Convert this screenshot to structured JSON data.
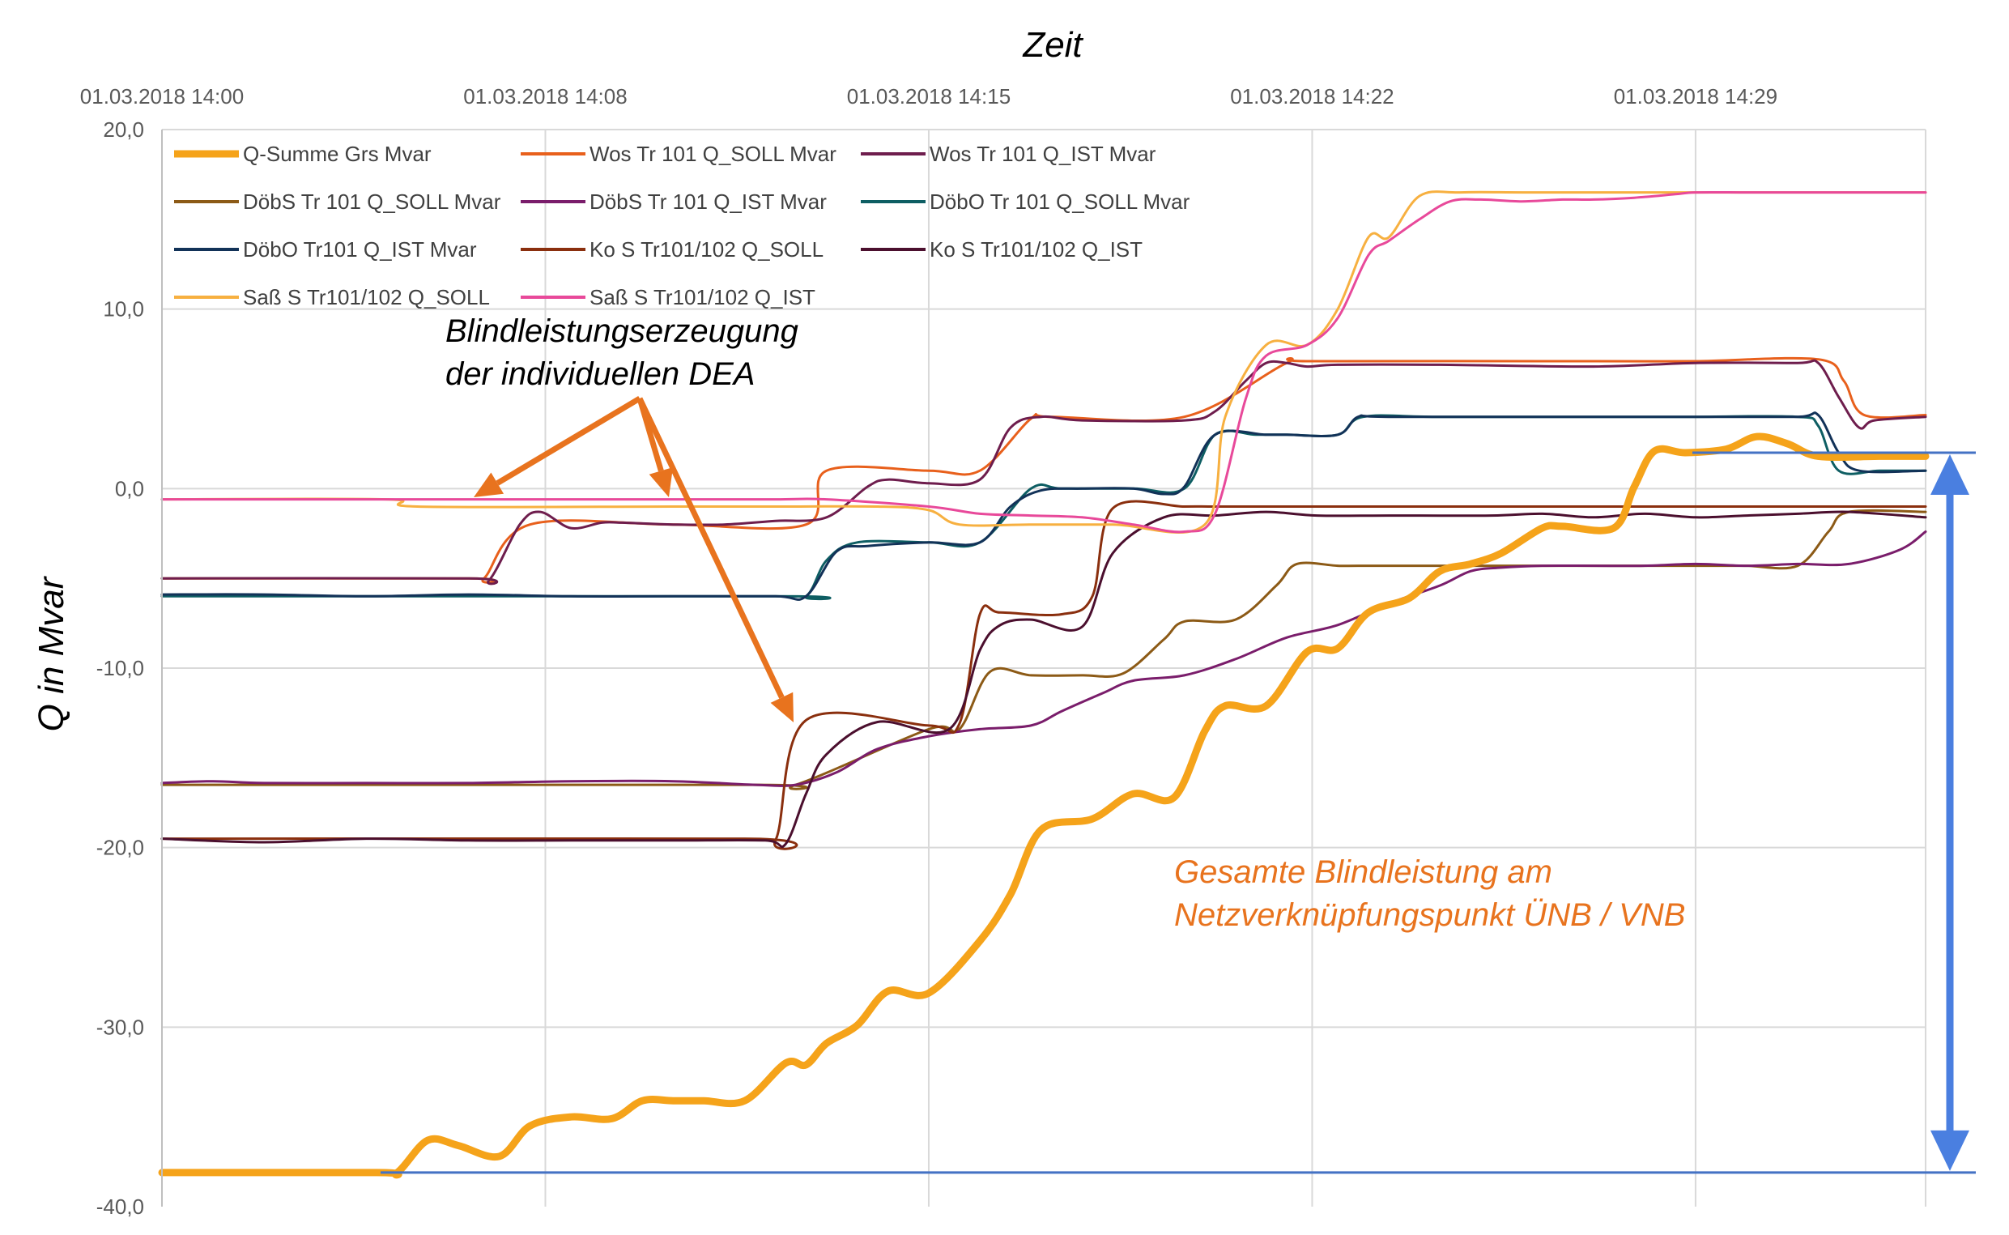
{
  "chart_data": {
    "type": "line",
    "xlabel": "Zeit",
    "ylabel": "Q in Mvar",
    "ylim": [
      -40,
      20
    ],
    "xlim": [
      0,
      34.5
    ],
    "grid": true,
    "legend_position": "top-left",
    "x_ticks": [
      {
        "value": 0,
        "label": "01.03.2018 14:00"
      },
      {
        "value": 7.5,
        "label": "01.03.2018 14:08"
      },
      {
        "value": 15,
        "label": "01.03.2018 14:15"
      },
      {
        "value": 22.5,
        "label": "01.03.2018 14:22"
      },
      {
        "value": 30,
        "label": "01.03.2018 14:29"
      }
    ],
    "y_ticks": [
      {
        "value": 20,
        "label": "20,0"
      },
      {
        "value": 10,
        "label": "10,0"
      },
      {
        "value": 0,
        "label": "0,0"
      },
      {
        "value": -10,
        "label": "-10,0"
      },
      {
        "value": -20,
        "label": "-20,0"
      },
      {
        "value": -30,
        "label": "-30,0"
      },
      {
        "value": -40,
        "label": "-40,0"
      }
    ],
    "series": [
      {
        "name": "Q-Summe Grs Mvar",
        "color": "#F5A31A",
        "width": 9,
        "x": [
          0,
          4.2,
          4.6,
          5.2,
          5.8,
          6.6,
          7.2,
          8,
          8.8,
          9.4,
          10,
          10.6,
          11.4,
          12.2,
          12.6,
          13,
          13.6,
          14.2,
          15,
          16,
          16.6,
          17.2,
          18.2,
          19,
          19.8,
          20.4,
          20.8,
          21.6,
          22.4,
          23,
          23.6,
          24.4,
          25,
          25.6,
          26.2,
          27,
          27.4,
          28.4,
          28.8,
          29.2,
          29.8,
          30.6,
          31.2,
          31.8,
          32.4,
          33.6,
          34.5
        ],
        "y": [
          -38.1,
          -38.1,
          -38.1,
          -36.3,
          -36.6,
          -37.2,
          -35.5,
          -35,
          -35.1,
          -34.1,
          -34.1,
          -34.1,
          -34.1,
          -32,
          -32.1,
          -30.9,
          -29.9,
          -28,
          -28.1,
          -25.2,
          -22.6,
          -19,
          -18.4,
          -17,
          -17.2,
          -13.5,
          -12.1,
          -12.1,
          -9.1,
          -8.9,
          -6.9,
          -6.1,
          -4.6,
          -4.2,
          -3.6,
          -2.2,
          -2.1,
          -2.2,
          0.1,
          2.1,
          2,
          2.2,
          2.9,
          2.5,
          1.8,
          1.8,
          1.8
        ]
      },
      {
        "name": "Wos Tr 101 Q_SOLL Mvar",
        "color": "#E8601C",
        "width": 3,
        "x": [
          0,
          6,
          6.3,
          7.2,
          10,
          12.6,
          13,
          15,
          16,
          17,
          17.4,
          20,
          22,
          22.5,
          28,
          30,
          32.4,
          32.9,
          33.3,
          34.5
        ],
        "y": [
          -5,
          -5,
          -5,
          -2,
          -2,
          -2,
          1,
          1,
          1,
          3.9,
          4,
          4,
          7,
          7.1,
          7.1,
          7.1,
          7.2,
          6,
          4.1,
          4.1
        ]
      },
      {
        "name": "Wos Tr 101 Q_IST Mvar",
        "color": "#6E1D4D",
        "width": 3,
        "x": [
          0,
          6,
          6.4,
          7,
          7.4,
          8,
          8.6,
          9,
          10,
          11,
          12,
          13,
          13.8,
          14.2,
          15,
          16,
          16.6,
          17.2,
          18,
          20,
          20.6,
          21.2,
          21.6,
          22,
          22.4,
          23,
          25,
          28,
          30,
          32,
          32.4,
          32.8,
          33.2,
          33.5,
          34.5
        ],
        "y": [
          -5,
          -5,
          -5.1,
          -2,
          -1.3,
          -2.2,
          -1.9,
          -1.9,
          -2,
          -2,
          -1.8,
          -1.6,
          0.1,
          0.5,
          0.3,
          0.5,
          3.4,
          4,
          3.8,
          3.8,
          4.3,
          6,
          7,
          7,
          6.8,
          6.9,
          6.9,
          6.8,
          7,
          7,
          7,
          5.1,
          3.4,
          3.8,
          4
        ]
      },
      {
        "name": "DöbS Tr 101 Q_SOLL Mvar",
        "color": "#8C5A16",
        "width": 3,
        "x": [
          0,
          11.6,
          12.4,
          15,
          15.6,
          16.2,
          17,
          18,
          18.8,
          19.6,
          20,
          21,
          21.8,
          22.2,
          23,
          23.4,
          25,
          28,
          29.8,
          30.4,
          31,
          32,
          32.6,
          33,
          34.5
        ],
        "y": [
          -16.5,
          -16.5,
          -16.5,
          -13.4,
          -13.4,
          -10.2,
          -10.4,
          -10.4,
          -10.3,
          -8.4,
          -7.4,
          -7.3,
          -5.4,
          -4.2,
          -4.3,
          -4.3,
          -4.3,
          -4.3,
          -4.3,
          -4.3,
          -4.3,
          -4.3,
          -2.4,
          -1.3,
          -1.3
        ]
      },
      {
        "name": "DöbS Tr 101  Q_IST Mvar",
        "color": "#7A1D6B",
        "width": 3,
        "x": [
          0,
          1,
          2,
          4,
          6,
          8,
          10,
          11.6,
          12.4,
          13.2,
          14,
          15,
          16,
          17,
          17.6,
          18.4,
          19,
          20,
          21,
          22,
          23,
          24,
          25,
          25.6,
          26.2,
          27,
          28,
          29,
          30,
          31,
          32,
          33,
          34,
          34.5
        ],
        "y": [
          -16.4,
          -16.3,
          -16.4,
          -16.4,
          -16.4,
          -16.3,
          -16.3,
          -16.5,
          -16.5,
          -15.8,
          -14.5,
          -13.8,
          -13.4,
          -13.2,
          -12.4,
          -11.4,
          -10.7,
          -10.4,
          -9.5,
          -8.3,
          -7.6,
          -6.4,
          -5.4,
          -4.6,
          -4.4,
          -4.3,
          -4.3,
          -4.3,
          -4.2,
          -4.3,
          -4.2,
          -4.2,
          -3.4,
          -2.4
        ]
      },
      {
        "name": "DöbO Tr 101 Q_SOLL Mvar",
        "color": "#0E5E63",
        "width": 3,
        "x": [
          0,
          12,
          12.6,
          13,
          13.6,
          15,
          16,
          17,
          17.6,
          19,
          20,
          20.6,
          21.4,
          22,
          23,
          23.5,
          25,
          28,
          30,
          32,
          32.4,
          32.8,
          33.6,
          34.5
        ],
        "y": [
          -6,
          -6,
          -6,
          -4,
          -3,
          -3,
          -3,
          0,
          0,
          0,
          0,
          3,
          3,
          3,
          3,
          4,
          4,
          4,
          4,
          4,
          3.5,
          1,
          1,
          1
        ]
      },
      {
        "name": "DöbO Tr101 Q_IST Mvar",
        "color": "#123258",
        "width": 3,
        "x": [
          0,
          2,
          4,
          6,
          8,
          10,
          12,
          12.6,
          13.2,
          13.8,
          15,
          16,
          16.6,
          17.2,
          18,
          19,
          19.6,
          20,
          20.6,
          21.6,
          22,
          23,
          23.4,
          24,
          28,
          30,
          32,
          32.4,
          32.8,
          33.2,
          34.5
        ],
        "y": [
          -5.9,
          -5.9,
          -6,
          -5.9,
          -6,
          -6,
          -6,
          -6,
          -3.5,
          -3.2,
          -3,
          -3,
          -1,
          -0.1,
          0,
          0,
          -0.3,
          0.1,
          3,
          3,
          3,
          3,
          4,
          4,
          4,
          4,
          4,
          4.1,
          2,
          1,
          1
        ]
      },
      {
        "name": "Ko S Tr101/102 Q_SOLL",
        "color": "#8A2F0E",
        "width": 3,
        "x": [
          0,
          11.4,
          12,
          12.6,
          15,
          15.6,
          16,
          16.4,
          17.6,
          18.2,
          18.6,
          20,
          20.6,
          22,
          25,
          28,
          30,
          32,
          34.5
        ],
        "y": [
          -19.5,
          -19.5,
          -19.6,
          -12.9,
          -13.2,
          -13.1,
          -7,
          -6.9,
          -7,
          -6,
          -1.1,
          -1,
          -1,
          -1,
          -1,
          -1,
          -1,
          -1,
          -1
        ]
      },
      {
        "name": "Ko S Tr101/102 Q_IST",
        "color": "#4B0F2E",
        "width": 3,
        "x": [
          0,
          2,
          4,
          6,
          8,
          10,
          11.8,
          12.2,
          12.6,
          13,
          14,
          15.4,
          16,
          16.4,
          17,
          18,
          18.6,
          19.6,
          20.6,
          21.6,
          22.6,
          24,
          26,
          27,
          28,
          29,
          30,
          31,
          32,
          33,
          34.5
        ],
        "y": [
          -19.5,
          -19.7,
          -19.5,
          -19.6,
          -19.6,
          -19.6,
          -19.6,
          -19.8,
          -17,
          -14.8,
          -13,
          -13.4,
          -9,
          -7.6,
          -7.3,
          -7.7,
          -3.6,
          -1.6,
          -1.5,
          -1.3,
          -1.5,
          -1.5,
          -1.5,
          -1.4,
          -1.6,
          -1.4,
          -1.6,
          -1.5,
          -1.4,
          -1.3,
          -1.6
        ]
      },
      {
        "name": "Saß S Tr101/102 Q_SOLL",
        "color": "#F7B040",
        "width": 3,
        "x": [
          0,
          4.4,
          5,
          10,
          12,
          14,
          15,
          15.6,
          17,
          18.6,
          20.4,
          20.8,
          21.6,
          22.4,
          23,
          23.6,
          24,
          24.6,
          25.4,
          26.6,
          28,
          30,
          34.5
        ],
        "y": [
          -0.6,
          -0.6,
          -1,
          -1,
          -1,
          -1,
          -1.2,
          -2,
          -2,
          -2,
          -2,
          4,
          8,
          8,
          10,
          14,
          14,
          16.3,
          16.5,
          16.5,
          16.5,
          16.5,
          16.5
        ]
      },
      {
        "name": "Saß S Tr101/102 Q_IST",
        "color": "#E8499A",
        "width": 3,
        "x": [
          0,
          2,
          4,
          6,
          8,
          10,
          12,
          13,
          15,
          16,
          17,
          18,
          19,
          20,
          20.6,
          21.2,
          21.6,
          22.4,
          23,
          23.6,
          24,
          24.6,
          25.2,
          25.8,
          26.6,
          27.4,
          28,
          28.8,
          29.6,
          30,
          31,
          32,
          33,
          34.5
        ],
        "y": [
          -0.6,
          -0.6,
          -0.6,
          -0.6,
          -0.6,
          -0.6,
          -0.6,
          -0.6,
          -1,
          -1.4,
          -1.5,
          -1.6,
          -2,
          -2.4,
          -1.4,
          5,
          7.4,
          8,
          9.5,
          13,
          13.8,
          15,
          16,
          16.1,
          16,
          16.1,
          16.1,
          16.2,
          16.4,
          16.5,
          16.5,
          16.5,
          16.5,
          16.5
        ]
      }
    ]
  },
  "annotations": {
    "dea_label_line1": "Blindleistungserzeugung",
    "dea_label_line2": "der individuellen DEA",
    "dea_color": "#000000",
    "arrow_color": "#E8731E",
    "total_label_line1": "Gesamte Blindleistung am",
    "total_label_line2": "Netzverknüpfungspunkt ÜNB / VNB",
    "total_color": "#E8731E",
    "range_line_color": "#4472C4",
    "range_arrow_color": "#4A7FE0"
  }
}
